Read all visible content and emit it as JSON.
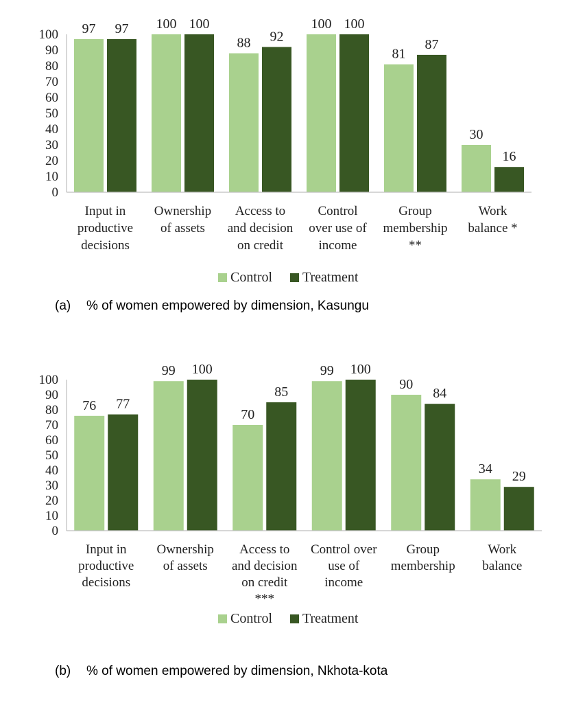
{
  "colors": {
    "control": "#a9d18e",
    "treatment": "#385723",
    "axis": "#bfbfbf",
    "text": "#222222"
  },
  "chart_data": [
    {
      "type": "bar",
      "caption_label": "(a)",
      "caption": "% of women empowered by dimension, Kasungu",
      "categories": [
        [
          "Input in",
          "productive",
          "decisions"
        ],
        [
          "Ownership",
          "of assets"
        ],
        [
          "Access to",
          "and decision",
          "on credit"
        ],
        [
          "Control",
          "over use of",
          "income"
        ],
        [
          "Group",
          "membership",
          "**"
        ],
        [
          "Work",
          "balance *"
        ]
      ],
      "series": [
        {
          "name": "Control",
          "values": [
            97,
            100,
            88,
            100,
            81,
            30
          ]
        },
        {
          "name": "Treatment",
          "values": [
            97,
            100,
            92,
            100,
            87,
            16
          ]
        }
      ],
      "ylim": [
        0,
        100
      ],
      "yticks": [
        0,
        10,
        20,
        30,
        40,
        50,
        60,
        70,
        80,
        90,
        100
      ],
      "grid": false,
      "legend": "bottom"
    },
    {
      "type": "bar",
      "caption_label": "(b)",
      "caption": "% of women empowered by dimension, Nkhota-kota",
      "categories": [
        [
          "Input in",
          "productive",
          "decisions"
        ],
        [
          "Ownership",
          "of assets"
        ],
        [
          "Access to",
          "and decision",
          "on credit",
          "***"
        ],
        [
          "Control over",
          "use of",
          "income"
        ],
        [
          "Group",
          "membership"
        ],
        [
          "Work",
          "balance"
        ]
      ],
      "series": [
        {
          "name": "Control",
          "values": [
            76,
            99,
            70,
            99,
            90,
            34
          ]
        },
        {
          "name": "Treatment",
          "values": [
            77,
            100,
            85,
            100,
            84,
            29
          ]
        }
      ],
      "ylim": [
        0,
        100
      ],
      "yticks": [
        0,
        10,
        20,
        30,
        40,
        50,
        60,
        70,
        80,
        90,
        100
      ],
      "grid": false,
      "legend": "bottom"
    }
  ]
}
